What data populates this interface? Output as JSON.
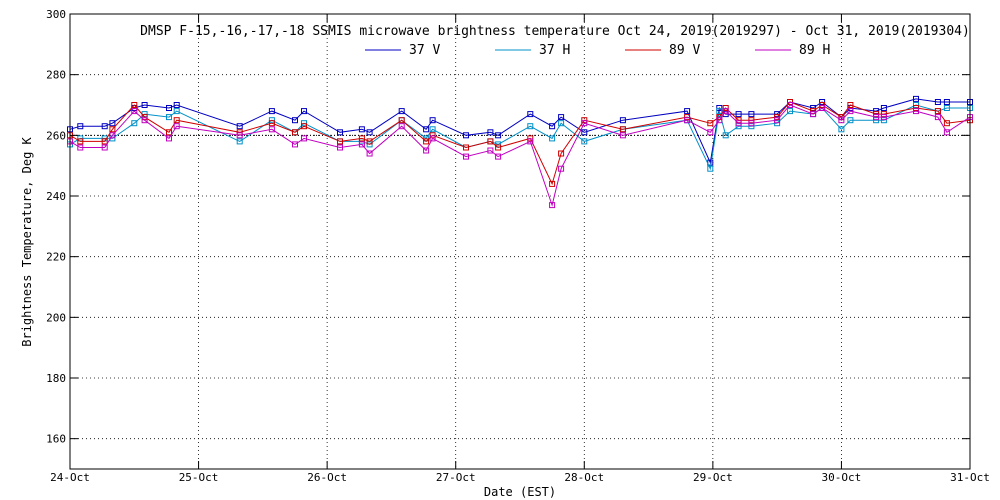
{
  "chart_data": {
    "type": "line",
    "title": "DMSP F-15,-16,-17,-18 SSMIS microwave brightness temperature Oct 24, 2019(2019297) - Oct 31, 2019(2019304)",
    "xlabel": "Date (EST)",
    "ylabel": "Brightness Temperature, Deg K",
    "xlim": [
      0,
      7
    ],
    "ylim": [
      150,
      300
    ],
    "yticks": [
      160,
      180,
      200,
      220,
      240,
      260,
      280,
      300
    ],
    "xtick_labels": [
      "24-Oct",
      "25-Oct",
      "26-Oct",
      "27-Oct",
      "28-Oct",
      "29-Oct",
      "30-Oct",
      "31-Oct"
    ],
    "reference_line": 260,
    "grid": true,
    "legend_position": "top-center",
    "series": [
      {
        "name": "37 V",
        "color": "#0000c0",
        "x": [
          0.0,
          0.08,
          0.27,
          0.33,
          0.5,
          0.58,
          0.77,
          0.83,
          1.32,
          1.57,
          1.75,
          1.82,
          2.1,
          2.27,
          2.33,
          2.58,
          2.77,
          2.82,
          3.08,
          3.27,
          3.33,
          3.58,
          3.75,
          3.82,
          4.0,
          4.3,
          4.8,
          4.98,
          5.05,
          5.1,
          5.2,
          5.3,
          5.5,
          5.6,
          5.78,
          5.85,
          6.0,
          6.07,
          6.27,
          6.33,
          6.58,
          6.75,
          6.82,
          7.0
        ],
        "y": [
          262,
          263,
          263,
          264,
          269,
          270,
          269,
          270,
          263,
          268,
          265,
          268,
          261,
          262,
          261,
          268,
          262,
          265,
          260,
          261,
          260,
          267,
          263,
          266,
          261,
          265,
          268,
          251,
          269,
          267,
          267,
          267,
          267,
          271,
          269,
          271,
          266,
          269,
          268,
          269,
          272,
          271,
          271,
          271
        ]
      },
      {
        "name": "37 H",
        "color": "#0090c8",
        "x": [
          0.0,
          0.08,
          0.27,
          0.33,
          0.5,
          0.58,
          0.77,
          0.83,
          1.32,
          1.57,
          1.75,
          1.82,
          2.1,
          2.27,
          2.33,
          2.58,
          2.77,
          2.82,
          3.08,
          3.27,
          3.33,
          3.58,
          3.75,
          3.82,
          4.0,
          4.3,
          4.8,
          4.98,
          5.05,
          5.1,
          5.2,
          5.3,
          5.5,
          5.6,
          5.78,
          5.85,
          6.0,
          6.07,
          6.27,
          6.33,
          6.58,
          6.75,
          6.82,
          7.0
        ],
        "y": [
          257,
          259,
          259,
          259,
          264,
          267,
          266,
          268,
          258,
          265,
          261,
          264,
          258,
          258,
          257,
          265,
          259,
          262,
          256,
          258,
          257,
          263,
          259,
          264,
          258,
          262,
          265,
          249,
          268,
          260,
          263,
          263,
          264,
          268,
          267,
          269,
          262,
          265,
          265,
          265,
          270,
          268,
          269,
          269
        ]
      },
      {
        "name": "89 V",
        "color": "#d00000",
        "x": [
          0.0,
          0.08,
          0.27,
          0.33,
          0.5,
          0.58,
          0.77,
          0.83,
          1.32,
          1.57,
          1.75,
          1.82,
          2.1,
          2.27,
          2.33,
          2.58,
          2.77,
          2.82,
          3.08,
          3.27,
          3.33,
          3.58,
          3.75,
          3.82,
          4.0,
          4.3,
          4.8,
          4.98,
          5.05,
          5.1,
          5.2,
          5.3,
          5.5,
          5.6,
          5.78,
          5.85,
          6.0,
          6.07,
          6.27,
          6.33,
          6.58,
          6.75,
          6.82,
          7.0
        ],
        "y": [
          260,
          258,
          258,
          262,
          270,
          266,
          261,
          265,
          261,
          264,
          261,
          263,
          258,
          259,
          258,
          265,
          258,
          260,
          256,
          258,
          256,
          259,
          244,
          254,
          265,
          262,
          266,
          264,
          266,
          269,
          265,
          265,
          266,
          271,
          268,
          270,
          266,
          270,
          267,
          267,
          269,
          268,
          264,
          265
        ]
      },
      {
        "name": "89 H",
        "color": "#c000c0",
        "x": [
          0.0,
          0.08,
          0.27,
          0.33,
          0.5,
          0.58,
          0.77,
          0.83,
          1.32,
          1.57,
          1.75,
          1.82,
          2.1,
          2.27,
          2.33,
          2.58,
          2.77,
          2.82,
          3.08,
          3.27,
          3.33,
          3.58,
          3.75,
          3.82,
          4.0,
          4.3,
          4.8,
          4.98,
          5.05,
          5.1,
          5.2,
          5.3,
          5.5,
          5.6,
          5.78,
          5.85,
          6.0,
          6.07,
          6.27,
          6.33,
          6.58,
          6.75,
          6.82,
          7.0
        ],
        "y": [
          258,
          256,
          256,
          260,
          268,
          265,
          259,
          263,
          260,
          262,
          257,
          259,
          256,
          257,
          254,
          263,
          255,
          259,
          253,
          255,
          253,
          258,
          237,
          249,
          264,
          260,
          265,
          261,
          265,
          268,
          264,
          264,
          265,
          270,
          267,
          269,
          265,
          268,
          266,
          266,
          268,
          266,
          261,
          266
        ]
      }
    ]
  }
}
